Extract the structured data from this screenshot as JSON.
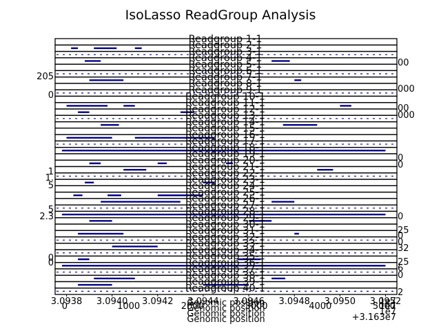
{
  "chart_data": {
    "type": "scatter",
    "title": "IsoLasso ReadGroup Analysis",
    "panel_titles": [
      "Readgroup 1-1",
      "Readgroup 2-1",
      "Readgroup 3-1",
      "Readgroup 4-1",
      "Readgroup 5-1",
      "Readgroup 6-1",
      "Readgroup 7-1",
      "Readgroup 8-1",
      "Readgroup 9-1",
      "Readgroup 10-1",
      "Readgroup 11-1",
      "Readgroup 12-1",
      "Readgroup 13-1",
      "Readgroup 14-1",
      "Readgroup 15-1",
      "Readgroup 16-1",
      "Readgroup 17-1",
      "Readgroup 18-1",
      "Readgroup 19-1",
      "Readgroup 20-1",
      "Readgroup 21-1",
      "Readgroup 22-1",
      "Readgroup 23-1",
      "Readgroup 24-1",
      "Readgroup 25-1",
      "Readgroup 26-1",
      "Readgroup 27-1",
      "Readgroup 28-1",
      "Readgroup 29-1",
      "Readgroup 30-1",
      "Readgroup 31-1",
      "Readgroup 32-1",
      "Readgroup 33-1",
      "Readgroup 34-1",
      "Readgroup 35-1",
      "Readgroup 36-1",
      "Readgroup 37-1",
      "Readgroup 38-1",
      "Readgroup 39-1",
      "Readgroup 40-1"
    ],
    "xlabels": [
      "Genomic position",
      "Genomic position",
      "Genomic position",
      "Genomic position"
    ],
    "x_ticks_a": {
      "labels": [
        "3.0938",
        "3.0940",
        "3.0942",
        "3.0944",
        "3.0946",
        "3.0948",
        "3.0950",
        "3.0952"
      ],
      "values": [
        3.0938,
        3.094,
        3.0942,
        3.0944,
        3.0946,
        3.0948,
        3.095,
        3.0952
      ],
      "lim": [
        3.09375,
        3.09525
      ],
      "offset": "1e7"
    },
    "x_ticks_b": {
      "labels": [
        "0",
        "1000",
        "2000",
        "3000",
        "4000",
        "5000"
      ],
      "values": [
        0,
        1000,
        2000,
        3000,
        4000,
        5000
      ],
      "lim": [
        -150,
        5200
      ],
      "offset_lines": [
        "1e7",
        "1e7",
        "+3.163e7"
      ]
    },
    "left_fragments": [
      "205",
      "0",
      "1",
      "1.",
      "5",
      "5",
      "2.3",
      "0",
      "0"
    ],
    "right_fragments": [
      "00",
      "000",
      "00",
      "000",
      "0",
      "0",
      "0",
      "25",
      "0",
      "0",
      "32",
      "25",
      "6",
      "0",
      "2"
    ],
    "series_color": "#00008b",
    "read_segments": [
      {
        "row": 1,
        "x": [
          3.09382,
          3.09385
        ]
      },
      {
        "row": 1,
        "x": [
          3.09392,
          3.09402
        ]
      },
      {
        "row": 1,
        "x": [
          3.0941,
          3.09413
        ]
      },
      {
        "row": 3,
        "x": [
          3.09388,
          3.09395
        ]
      },
      {
        "row": 3,
        "x": [
          3.0947,
          3.09478
        ]
      },
      {
        "row": 6,
        "x": [
          3.0939,
          3.09405
        ]
      },
      {
        "row": 6,
        "x": [
          3.0948,
          3.09483
        ]
      },
      {
        "row": 10,
        "x": [
          3.0938,
          3.09398
        ]
      },
      {
        "row": 10,
        "x": [
          3.09405,
          3.0941
        ]
      },
      {
        "row": 10,
        "x": [
          3.095,
          3.09505
        ]
      },
      {
        "row": 11,
        "x": [
          3.09385,
          3.0939
        ]
      },
      {
        "row": 11,
        "x": [
          3.0943,
          3.09436
        ]
      },
      {
        "row": 13,
        "x": [
          3.09395,
          3.09403
        ]
      },
      {
        "row": 13,
        "x": [
          3.09475,
          3.0949
        ]
      },
      {
        "row": 15,
        "x": [
          3.0938,
          3.094
        ]
      },
      {
        "row": 15,
        "x": [
          3.0941,
          3.09445
        ]
      },
      {
        "row": 17,
        "x": [
          3.09378,
          3.0952
        ]
      },
      {
        "row": 19,
        "x": [
          3.0939,
          3.09395
        ]
      },
      {
        "row": 19,
        "x": [
          3.0942,
          3.09424
        ]
      },
      {
        "row": 19,
        "x": [
          3.0945,
          3.09453
        ]
      },
      {
        "row": 20,
        "x": [
          3.09405,
          3.09415
        ]
      },
      {
        "row": 20,
        "x": [
          3.0949,
          3.09497
        ]
      },
      {
        "row": 22,
        "x": [
          3.09388,
          3.09392
        ]
      },
      {
        "row": 22,
        "x": [
          3.0944,
          3.09445
        ]
      },
      {
        "row": 24,
        "x": [
          3.09383,
          3.09387
        ]
      },
      {
        "row": 24,
        "x": [
          3.09398,
          3.09404
        ]
      },
      {
        "row": 24,
        "x": [
          3.0942,
          3.0944
        ]
      },
      {
        "row": 25,
        "x": [
          3.09395,
          3.0943
        ]
      },
      {
        "row": 25,
        "x": [
          3.0947,
          3.0948
        ]
      },
      {
        "row": 27,
        "x": [
          3.09378,
          3.0952
        ]
      },
      {
        "row": 28,
        "x": [
          3.0939,
          3.094
        ]
      },
      {
        "row": 28,
        "x": [
          3.0946,
          3.0947
        ]
      },
      {
        "row": 30,
        "x": [
          3.09385,
          3.09405
        ]
      },
      {
        "row": 30,
        "x": [
          3.0948,
          3.09482
        ]
      },
      {
        "row": 32,
        "x": [
          3.094,
          3.0942
        ]
      },
      {
        "row": 34,
        "x": [
          3.09385,
          3.0939
        ]
      },
      {
        "row": 34,
        "x": [
          3.09455,
          3.09465
        ]
      },
      {
        "row": 35,
        "x": [
          3.09378,
          3.0952
        ]
      },
      {
        "row": 37,
        "x": [
          3.09392,
          3.0941
        ]
      },
      {
        "row": 37,
        "x": [
          3.0947,
          3.09476
        ]
      },
      {
        "row": 38,
        "x": [
          3.09385,
          3.094
        ]
      },
      {
        "row": 38,
        "x": [
          3.0944,
          3.0946
        ]
      }
    ],
    "dashed_rows": [
      2,
      5,
      8,
      12,
      16,
      21,
      26,
      31,
      33,
      36,
      39
    ]
  }
}
